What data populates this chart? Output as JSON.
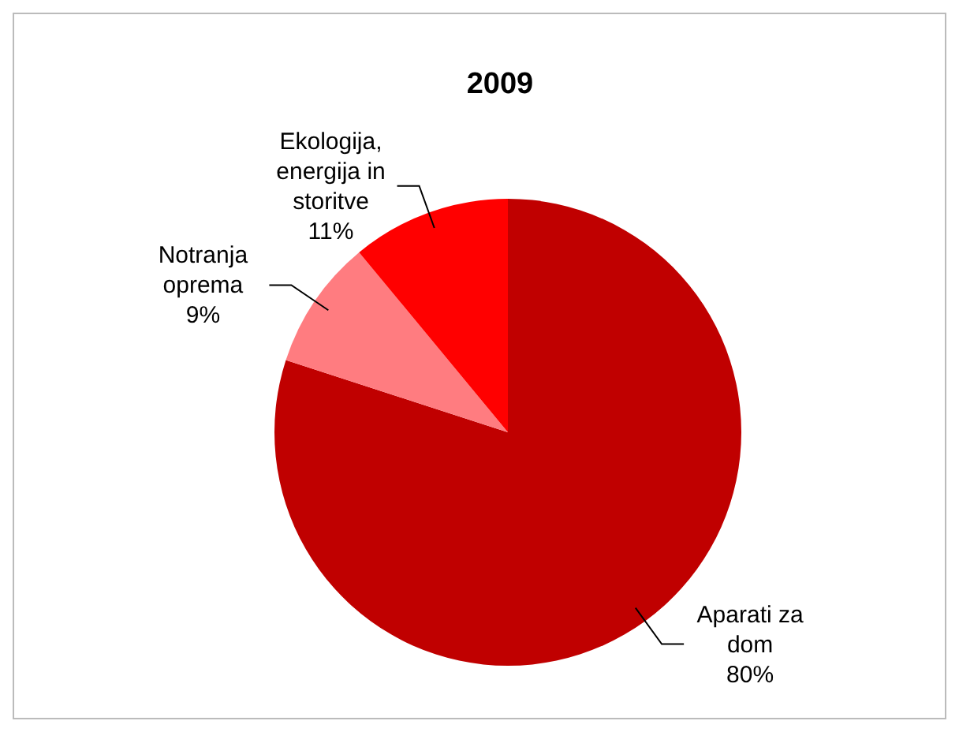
{
  "chart_data": {
    "type": "pie",
    "title": "2009",
    "categories": [
      "Aparati za dom",
      "Notranja oprema",
      "Ekologija, energija in storitve"
    ],
    "values": [
      80,
      9,
      11
    ],
    "value_labels": [
      "80%",
      "9%",
      "11%"
    ],
    "colors": [
      "#c00000",
      "#ff7c80",
      "#ff0000"
    ]
  }
}
